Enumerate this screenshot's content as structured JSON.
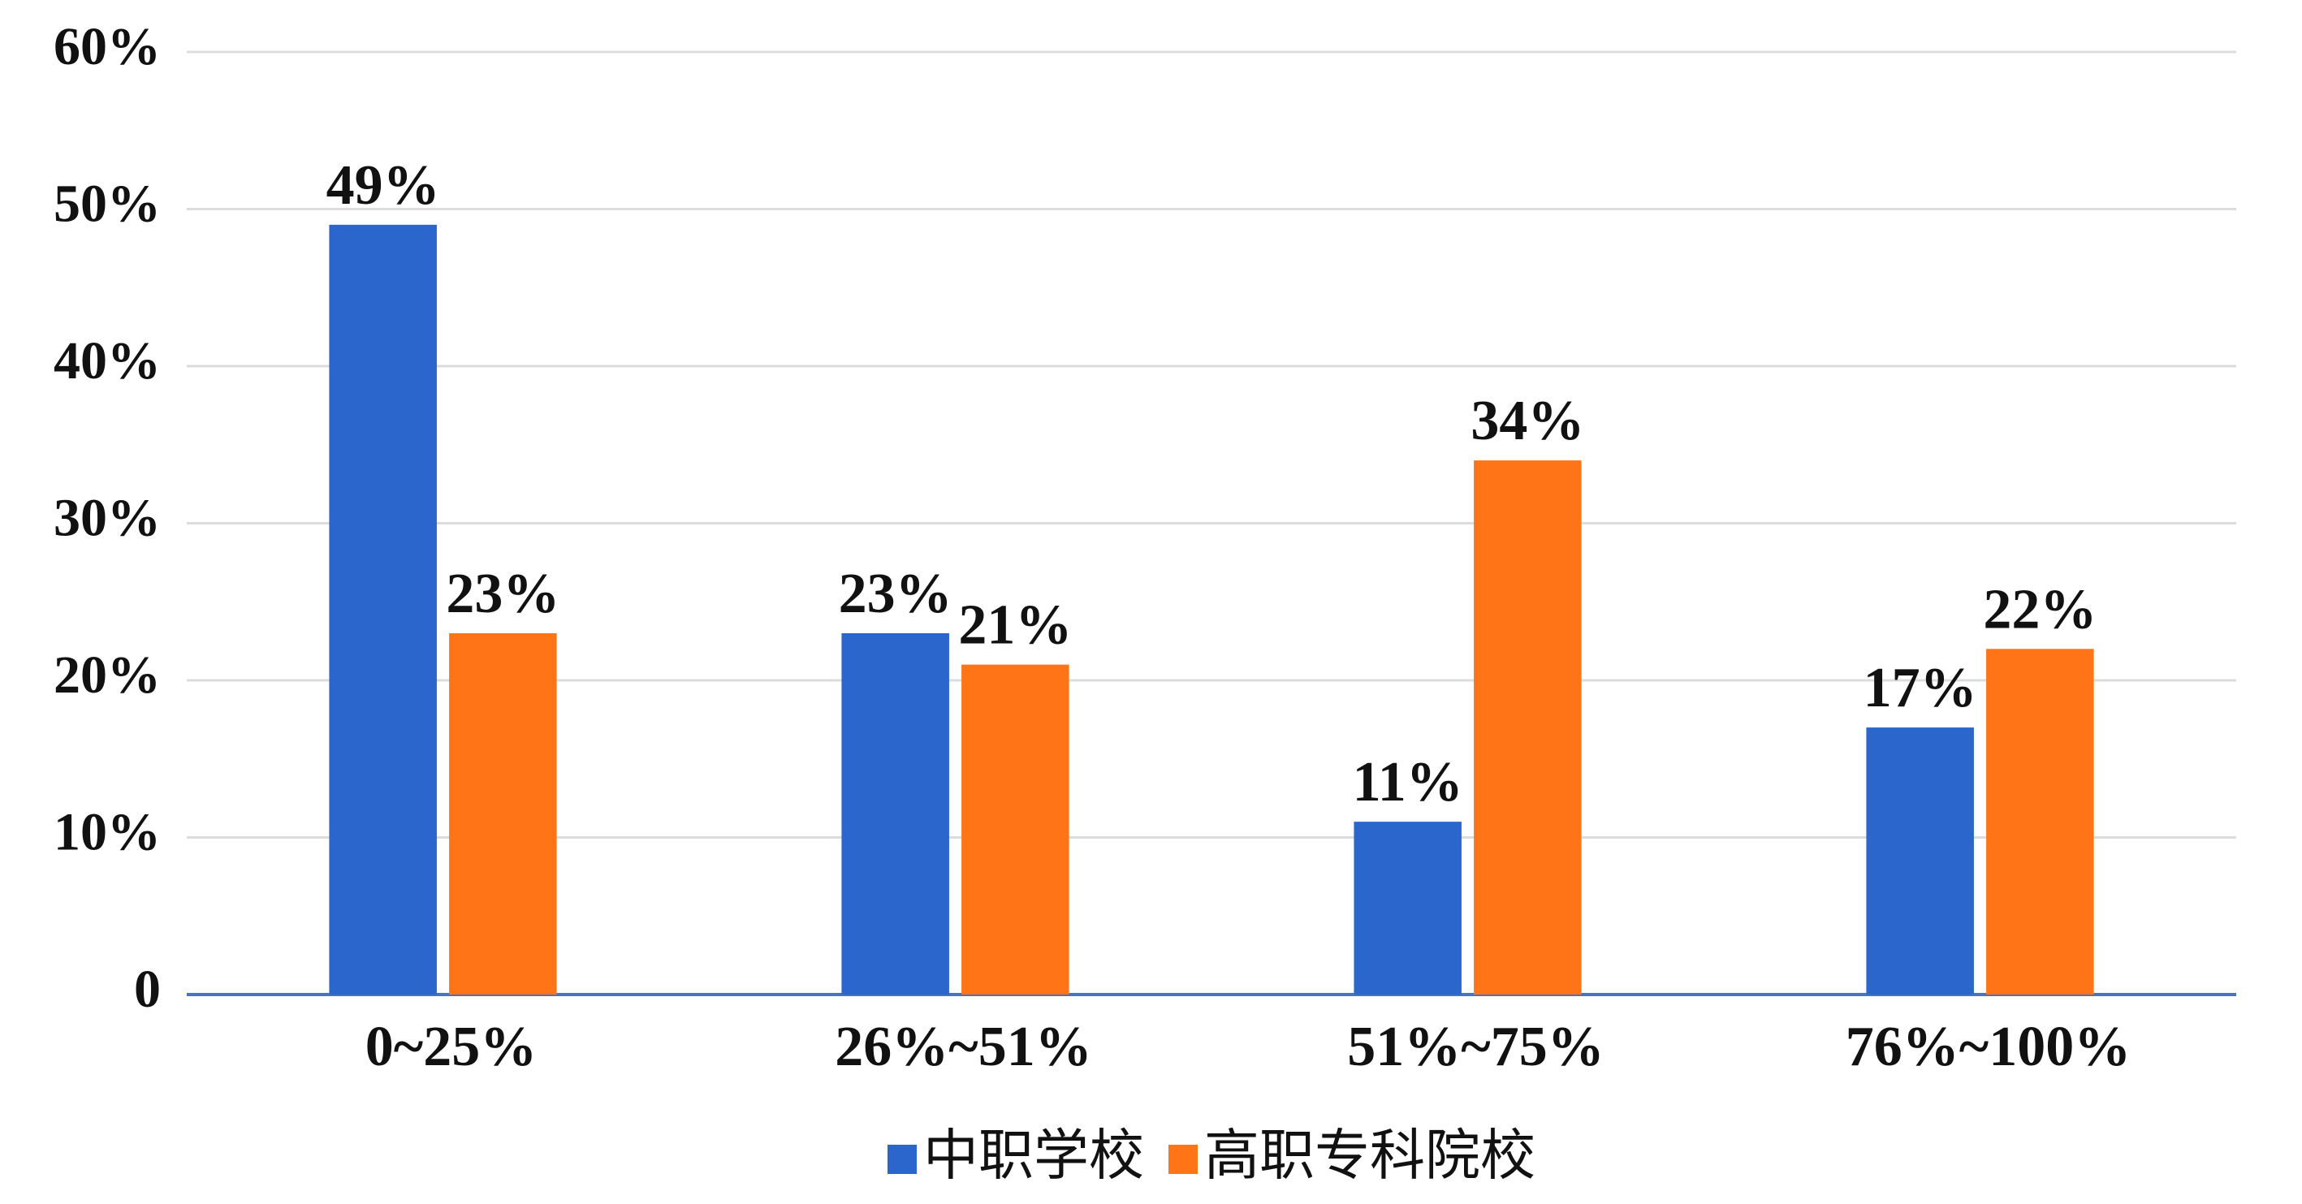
{
  "chart_data": {
    "type": "bar",
    "categories": [
      "0~25%",
      "26%~51%",
      "51%~75%",
      "76%~100%"
    ],
    "series": [
      {
        "name": "中职学校",
        "color": "#2a66cc",
        "values": [
          49,
          23,
          11,
          17
        ],
        "value_labels": [
          "49%",
          "23%",
          "11%",
          "17%"
        ]
      },
      {
        "name": "高职专科院校",
        "color": "#ff7417",
        "values": [
          23,
          21,
          34,
          22
        ],
        "value_labels": [
          "23%",
          "21%",
          "34%",
          "22%"
        ]
      }
    ],
    "ylim": [
      0,
      60
    ],
    "yticks": [
      0,
      {
        "value": 10,
        "label": "10%"
      },
      {
        "value": 20,
        "label": "20%"
      },
      {
        "value": 30,
        "label": "30%"
      },
      {
        "value": 40,
        "label": "40%"
      },
      {
        "value": 50,
        "label": "50%"
      },
      {
        "value": 60,
        "label": "60%"
      }
    ],
    "grid": true,
    "legend": "bottom"
  }
}
